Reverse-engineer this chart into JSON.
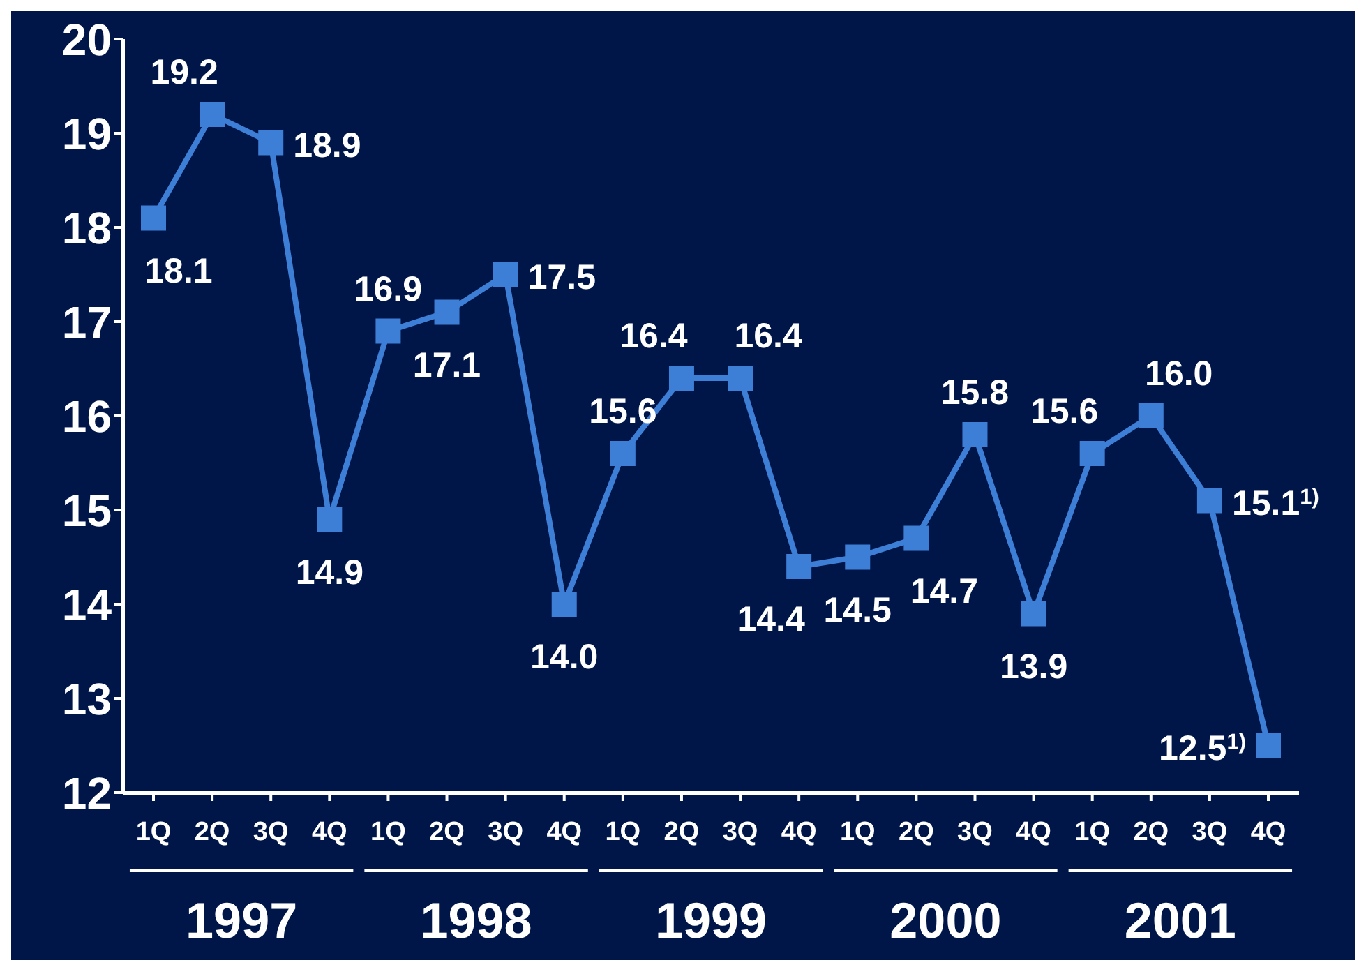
{
  "chart_data": {
    "type": "line",
    "categories": [
      "1Q",
      "2Q",
      "3Q",
      "4Q",
      "1Q",
      "2Q",
      "3Q",
      "4Q",
      "1Q",
      "2Q",
      "3Q",
      "4Q",
      "1Q",
      "2Q",
      "3Q",
      "4Q",
      "1Q",
      "2Q",
      "3Q",
      "4Q"
    ],
    "series": [
      {
        "color": "#3d7fd6",
        "values": [
          18.1,
          19.2,
          18.9,
          14.9,
          16.9,
          17.1,
          17.5,
          14.0,
          15.6,
          16.4,
          16.4,
          14.4,
          14.5,
          14.7,
          15.8,
          13.9,
          15.6,
          16.0,
          15.1,
          12.5
        ],
        "value_labels": [
          "18.1",
          "19.2",
          "18.9",
          "14.9",
          "16.9",
          "17.1",
          "17.5",
          "14.0",
          "15.6",
          "16.4",
          "16.4",
          "14.4",
          "14.5",
          "14.7",
          "15.8",
          "13.9",
          "15.6",
          "16.0",
          "15.1$^{1)}$",
          "12.5$^{1)}$"
        ]
      }
    ],
    "ylim": [
      12,
      20
    ],
    "yticks": [
      12,
      13,
      14,
      15,
      16,
      17,
      18,
      19,
      20
    ],
    "marker": "square",
    "line_style": "solid",
    "annotations": [
      "1997",
      "1998",
      "1999",
      "2000",
      "2001"
    ]
  }
}
